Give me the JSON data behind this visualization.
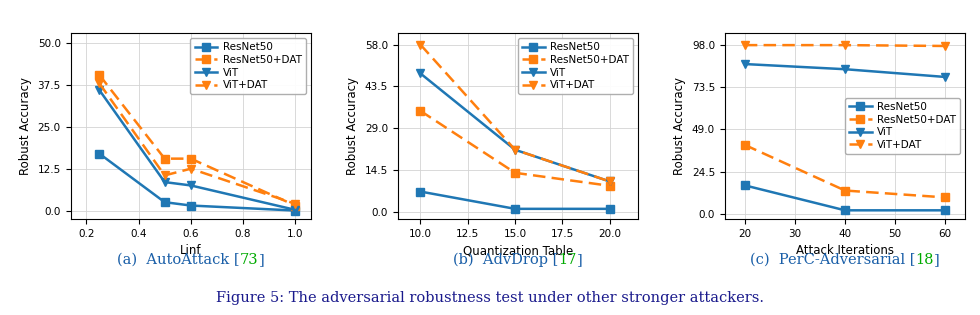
{
  "plot1": {
    "xlabel": "Linf",
    "ylabel": "Robust Accuracy",
    "x": [
      0.25,
      0.5,
      0.6,
      1.0
    ],
    "resnet50": [
      17.0,
      2.5,
      1.5,
      0.0
    ],
    "resnet50_dat": [
      40.5,
      15.5,
      15.5,
      1.5
    ],
    "vit": [
      36.0,
      8.5,
      7.5,
      0.2
    ],
    "vit_dat": [
      38.0,
      10.5,
      12.5,
      2.0
    ],
    "yticks": [
      0.0,
      12.5,
      25.0,
      37.5,
      50.0
    ],
    "xticks": [
      0.2,
      0.4,
      0.6,
      0.8,
      1.0
    ],
    "ylim": [
      -2.5,
      53
    ],
    "xlim": [
      0.14,
      1.06
    ],
    "subtitle_prefix": "(a)  AutoAttack [",
    "subtitle_ref": "73",
    "subtitle_suffix": "]"
  },
  "plot2": {
    "xlabel": "Quantization Table",
    "ylabel": "Robust Accuracy",
    "x": [
      10.0,
      15.0,
      20.0
    ],
    "resnet50": [
      7.0,
      1.0,
      1.0
    ],
    "resnet50_dat": [
      35.0,
      13.5,
      9.0
    ],
    "vit": [
      48.0,
      21.5,
      10.5
    ],
    "vit_dat": [
      58.0,
      21.5,
      10.5
    ],
    "yticks": [
      0.0,
      14.5,
      29.0,
      43.5,
      58.0
    ],
    "xticks": [
      10.0,
      12.5,
      15.0,
      17.5,
      20.0
    ],
    "ylim": [
      -2.5,
      62
    ],
    "xlim": [
      8.8,
      21.5
    ],
    "subtitle_prefix": "(b)  AdvDrop [",
    "subtitle_ref": "17",
    "subtitle_suffix": "]"
  },
  "plot3": {
    "xlabel": "Attack Iterations",
    "ylabel": "Robust Accuracy",
    "x": [
      20,
      40,
      60
    ],
    "resnet50": [
      16.5,
      2.0,
      2.0
    ],
    "resnet50_dat": [
      40.0,
      13.5,
      9.5
    ],
    "vit": [
      87.0,
      84.0,
      79.5
    ],
    "vit_dat": [
      98.0,
      98.0,
      97.5
    ],
    "yticks": [
      0.0,
      24.5,
      49.0,
      73.5,
      98.0
    ],
    "xticks": [
      20,
      30,
      40,
      50,
      60
    ],
    "ylim": [
      -3,
      105
    ],
    "xlim": [
      16,
      64
    ],
    "subtitle_prefix": "(c)  PerC-Adversarial [",
    "subtitle_ref": "18",
    "subtitle_suffix": "]"
  },
  "color_blue": "#1f77b4",
  "color_orange": "#ff7f0e",
  "title_color": "#1a5fa8",
  "ref_color": "#00aa00",
  "caption_color": "#1a1a8c",
  "lw": 1.8,
  "ms": 5.5,
  "legend_labels": [
    "ResNet50",
    "ResNet50+DAT",
    "ViT",
    "ViT+DAT"
  ],
  "caption": "Figure 5: The adversarial robustness test under other stronger attackers."
}
